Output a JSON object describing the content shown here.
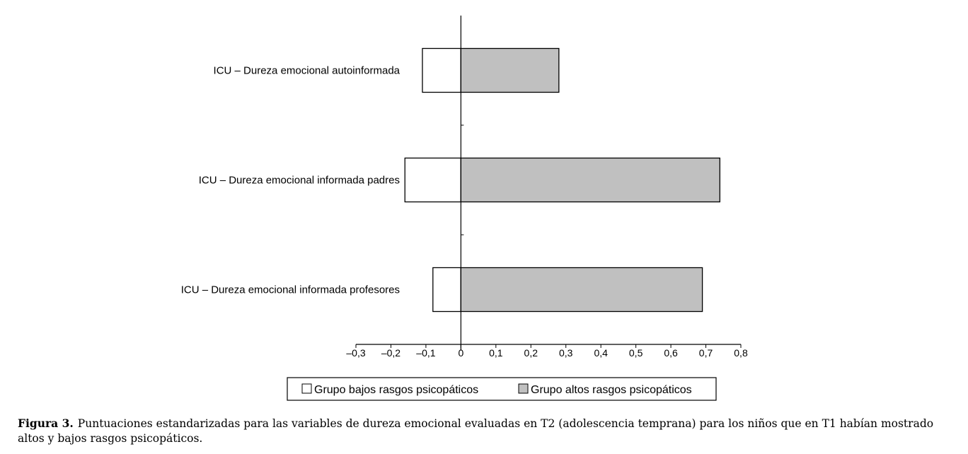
{
  "chart_data": {
    "type": "bar",
    "orientation": "horizontal",
    "categories": [
      "ICU – Dureza emocional autoinformada",
      "ICU – Dureza emocional informada padres",
      "ICU – Dureza emocional informada profesores"
    ],
    "series": [
      {
        "name": "Grupo bajos rasgos psicopáticos",
        "values": [
          -0.11,
          -0.16,
          -0.08
        ],
        "color": "#ffffff"
      },
      {
        "name": "Grupo altos rasgos psicopáticos",
        "values": [
          0.28,
          0.74,
          0.69
        ],
        "color": "#c0c0c0"
      }
    ],
    "xlim": [
      -0.3,
      0.8
    ],
    "x_ticks": [
      "–0,3",
      "–0,2",
      "–0,1",
      "0",
      "0,1",
      "0,2",
      "0,3",
      "0,4",
      "0,5",
      "0,6",
      "0,7",
      "0,8"
    ],
    "legend_position": "bottom",
    "grid": false
  },
  "caption": {
    "label": "Figura 3.",
    "text": "Puntuaciones estandarizadas para las variables de dureza emocional evaluadas en T2 (adolescencia temprana) para los niños que en T1 habían mostrado altos y bajos rasgos psicopáticos."
  }
}
